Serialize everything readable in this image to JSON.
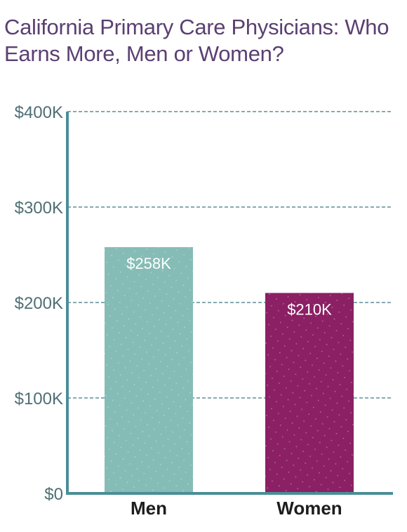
{
  "title": "California Primary Care Physicians: Who Earns More, Men or Women?",
  "colors": {
    "title": "#5b3f72",
    "axis": "#4a8e98",
    "grid": "#3f7780",
    "tick_text": "#4f6f75",
    "category_text": "#1d1d1d",
    "value_text": "#ffffff",
    "men_bar": "#86bcb6",
    "women_bar": "#8b2064"
  },
  "chart_data": {
    "type": "bar",
    "title": "California Primary Care Physicians: Who Earns More, Men or Women?",
    "xlabel": "",
    "ylabel": "",
    "categories": [
      "Men",
      "Women"
    ],
    "values": [
      258,
      210
    ],
    "value_labels": [
      "$258K",
      "$210K"
    ],
    "ylim": [
      0,
      400
    ],
    "yticks": [
      0,
      100,
      200,
      300,
      400
    ],
    "ytick_labels": [
      "$0",
      "$100K",
      "$200K",
      "$300K",
      "$400K"
    ],
    "grid": true,
    "legend": "none"
  }
}
